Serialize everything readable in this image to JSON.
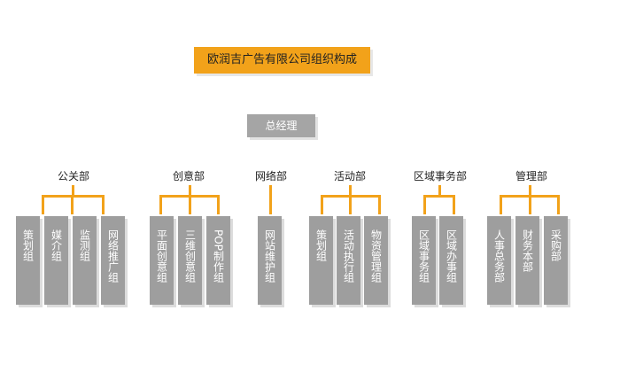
{
  "title": "欧润吉广告有限公司组织构成",
  "root": "总经理",
  "departments": [
    {
      "name": "公关部",
      "units": [
        "策划组",
        "媒介组",
        "监测组",
        "网络推广组"
      ]
    },
    {
      "name": "创意部",
      "units": [
        "平面创意组",
        "三维创意组",
        "POP制作组"
      ]
    },
    {
      "name": "网络部",
      "units": [
        "网站维护组"
      ]
    },
    {
      "name": "活动部",
      "units": [
        "策划组",
        "活动执行组",
        "物资管理组"
      ]
    },
    {
      "name": "区域事务部",
      "units": [
        "区域事务组",
        "区域办事组"
      ]
    },
    {
      "name": "管理部",
      "units": [
        "人事总务部",
        "财务本部",
        "采购部"
      ]
    }
  ],
  "colors": {
    "accent": "#f2a21a",
    "box": "#9e9e9e",
    "root_box": "#a5a5a5"
  }
}
